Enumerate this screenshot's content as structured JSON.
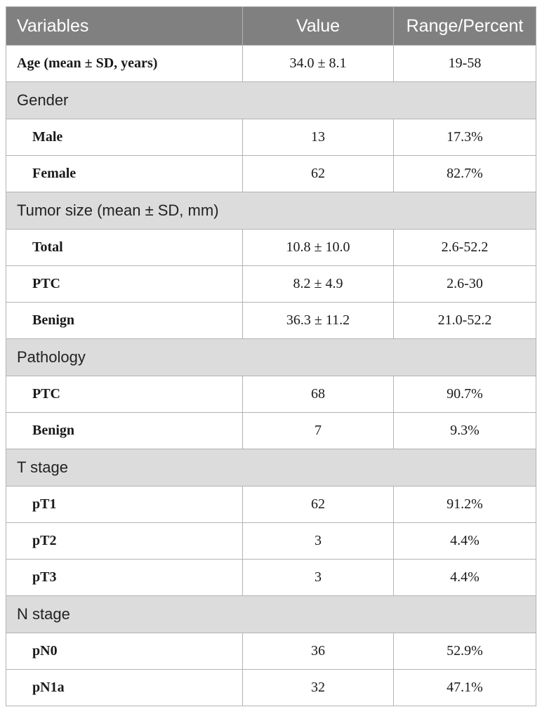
{
  "header": {
    "variables": "Variables",
    "value": "Value",
    "range_percent": "Range/Percent"
  },
  "age_row": {
    "label": "Age (mean ± SD, years)",
    "value": "34.0 ± 8.1",
    "range": "19-58"
  },
  "sections": [
    {
      "title": "Gender",
      "rows": [
        {
          "label": "Male",
          "value": "13",
          "range": "17.3%"
        },
        {
          "label": "Female",
          "value": "62",
          "range": "82.7%"
        }
      ]
    },
    {
      "title": "Tumor size (mean ± SD, mm)",
      "rows": [
        {
          "label": "Total",
          "value": "10.8 ± 10.0",
          "range": "2.6-52.2"
        },
        {
          "label": "PTC",
          "value": "8.2 ± 4.9",
          "range": "2.6-30"
        },
        {
          "label": "Benign",
          "value": "36.3 ± 11.2",
          "range": "21.0-52.2"
        }
      ]
    },
    {
      "title": "Pathology",
      "rows": [
        {
          "label": "PTC",
          "value": "68",
          "range": "90.7%"
        },
        {
          "label": "Benign",
          "value": "7",
          "range": "9.3%"
        }
      ]
    },
    {
      "title": "T stage",
      "rows": [
        {
          "label": "pT1",
          "value": "62",
          "range": "91.2%"
        },
        {
          "label": "pT2",
          "value": "3",
          "range": "4.4%"
        },
        {
          "label": "pT3",
          "value": "3",
          "range": "4.4%"
        }
      ]
    },
    {
      "title": "N stage",
      "rows": [
        {
          "label": "pN0",
          "value": "36",
          "range": "52.9%"
        },
        {
          "label": "pN1a",
          "value": "32",
          "range": "47.1%"
        }
      ]
    }
  ]
}
